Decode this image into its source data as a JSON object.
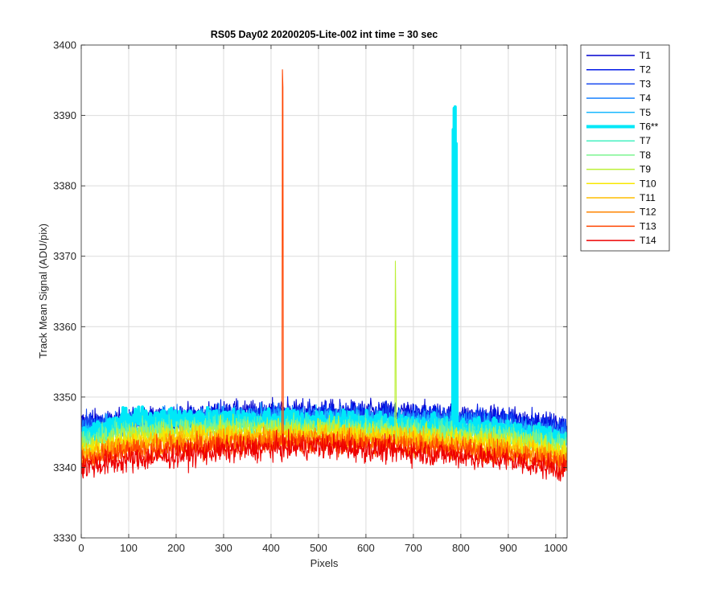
{
  "chart_data": {
    "type": "line",
    "title": "RS05 Day02 20200205-Lite-002 int time = 30 sec",
    "xlabel": "Pixels",
    "ylabel": "Track Mean Signal (ADU/pix)",
    "xlim": [
      0,
      1024
    ],
    "ylim": [
      3330,
      3400
    ],
    "x_ticks": [
      0,
      100,
      200,
      300,
      400,
      500,
      600,
      700,
      800,
      900,
      1000
    ],
    "y_ticks": [
      3330,
      3340,
      3350,
      3360,
      3370,
      3380,
      3390,
      3400
    ],
    "grid": true,
    "legend_location": "outside-top-right",
    "n_points": 1024,
    "series": [
      {
        "name": "T1",
        "color": "#0000d0",
        "baseline": [
          [
            0,
            3346.5
          ],
          [
            100,
            3346.8
          ],
          [
            300,
            3347.8
          ],
          [
            500,
            3348.0
          ],
          [
            700,
            3347.8
          ],
          [
            900,
            3347.0
          ],
          [
            1023,
            3345.8
          ]
        ],
        "noise": 2.0
      },
      {
        "name": "T2",
        "color": "#0018e8",
        "baseline": [
          [
            0,
            3346.3
          ],
          [
            100,
            3346.6
          ],
          [
            300,
            3347.6
          ],
          [
            500,
            3347.8
          ],
          [
            700,
            3347.6
          ],
          [
            900,
            3346.8
          ],
          [
            1023,
            3345.6
          ]
        ],
        "noise": 2.0
      },
      {
        "name": "T3",
        "color": "#1446f0",
        "baseline": [
          [
            0,
            3346.0
          ],
          [
            100,
            3346.4
          ],
          [
            300,
            3347.3
          ],
          [
            500,
            3347.5
          ],
          [
            700,
            3347.3
          ],
          [
            900,
            3346.5
          ],
          [
            1023,
            3345.3
          ]
        ],
        "noise": 2.0
      },
      {
        "name": "T4",
        "color": "#1a82ff",
        "baseline": [
          [
            0,
            3345.5
          ],
          [
            100,
            3346.2
          ],
          [
            300,
            3347.0
          ],
          [
            500,
            3347.1
          ],
          [
            700,
            3346.9
          ],
          [
            900,
            3346.0
          ],
          [
            1023,
            3344.8
          ]
        ],
        "noise": 2.0
      },
      {
        "name": "T5",
        "color": "#18b8ff",
        "baseline": [
          [
            0,
            3345.0
          ],
          [
            100,
            3346.5
          ],
          [
            300,
            3347.2
          ],
          [
            500,
            3346.9
          ],
          [
            700,
            3346.5
          ],
          [
            900,
            3345.7
          ],
          [
            1023,
            3344.3
          ]
        ],
        "noise": 2.0
      },
      {
        "name": "T6**",
        "color": "#00e8f8",
        "width": 4,
        "baseline": [
          [
            0,
            3344.5
          ],
          [
            100,
            3346.8
          ],
          [
            300,
            3347.0
          ],
          [
            500,
            3346.6
          ],
          [
            700,
            3346.0
          ],
          [
            900,
            3345.3
          ],
          [
            1023,
            3343.8
          ]
        ],
        "noise": 1.8,
        "spikes": [
          [
            784,
            3388.0
          ],
          [
            786,
            3391.0
          ],
          [
            788,
            3391.2
          ],
          [
            790,
            3386.0
          ],
          [
            791,
            3366.0
          ]
        ]
      },
      {
        "name": "T7",
        "color": "#46f0c0",
        "baseline": [
          [
            0,
            3344.0
          ],
          [
            100,
            3345.5
          ],
          [
            300,
            3346.0
          ],
          [
            500,
            3346.0
          ],
          [
            700,
            3345.5
          ],
          [
            900,
            3344.7
          ],
          [
            1023,
            3343.3
          ]
        ],
        "noise": 2.0
      },
      {
        "name": "T8",
        "color": "#7cf490",
        "baseline": [
          [
            0,
            3343.5
          ],
          [
            100,
            3345.0
          ],
          [
            300,
            3345.6
          ],
          [
            500,
            3345.6
          ],
          [
            700,
            3345.1
          ],
          [
            900,
            3344.3
          ],
          [
            1023,
            3342.9
          ]
        ],
        "noise": 2.0
      },
      {
        "name": "T9",
        "color": "#bcf038",
        "baseline": [
          [
            0,
            3343.0
          ],
          [
            100,
            3344.5
          ],
          [
            300,
            3345.2
          ],
          [
            500,
            3345.3
          ],
          [
            700,
            3344.8
          ],
          [
            900,
            3343.8
          ],
          [
            1023,
            3342.5
          ]
        ],
        "noise": 2.0,
        "spikes": [
          [
            662,
            3369.3
          ],
          [
            663,
            3362.0
          ]
        ]
      },
      {
        "name": "T10",
        "color": "#f8e800",
        "baseline": [
          [
            0,
            3342.4
          ],
          [
            100,
            3343.9
          ],
          [
            300,
            3344.7
          ],
          [
            500,
            3344.8
          ],
          [
            700,
            3344.3
          ],
          [
            900,
            3343.2
          ],
          [
            1023,
            3341.9
          ]
        ],
        "noise": 2.0
      },
      {
        "name": "T11",
        "color": "#ffbe00",
        "baseline": [
          [
            0,
            3341.9
          ],
          [
            100,
            3343.4
          ],
          [
            300,
            3344.2
          ],
          [
            500,
            3344.4
          ],
          [
            700,
            3343.9
          ],
          [
            900,
            3342.7
          ],
          [
            1023,
            3341.4
          ]
        ],
        "noise": 2.0
      },
      {
        "name": "T12",
        "color": "#ff8400",
        "baseline": [
          [
            0,
            3341.3
          ],
          [
            100,
            3342.8
          ],
          [
            300,
            3343.7
          ],
          [
            500,
            3344.0
          ],
          [
            700,
            3343.4
          ],
          [
            900,
            3342.2
          ],
          [
            1023,
            3340.9
          ]
        ],
        "noise": 2.0
      },
      {
        "name": "T13",
        "color": "#ff4400",
        "baseline": [
          [
            0,
            3340.8
          ],
          [
            100,
            3342.2
          ],
          [
            300,
            3343.2
          ],
          [
            500,
            3343.6
          ],
          [
            700,
            3343.0
          ],
          [
            900,
            3341.8
          ],
          [
            1023,
            3340.4
          ]
        ],
        "noise": 2.0,
        "spikes": [
          [
            424,
            3396.5
          ],
          [
            425,
            3394.0
          ]
        ]
      },
      {
        "name": "T14",
        "color": "#ee0000",
        "baseline": [
          [
            0,
            3340.0
          ],
          [
            100,
            3341.0
          ],
          [
            300,
            3342.4
          ],
          [
            500,
            3343.0
          ],
          [
            700,
            3342.2
          ],
          [
            900,
            3341.0
          ],
          [
            1023,
            3339.6
          ]
        ],
        "noise": 2.2
      }
    ]
  }
}
